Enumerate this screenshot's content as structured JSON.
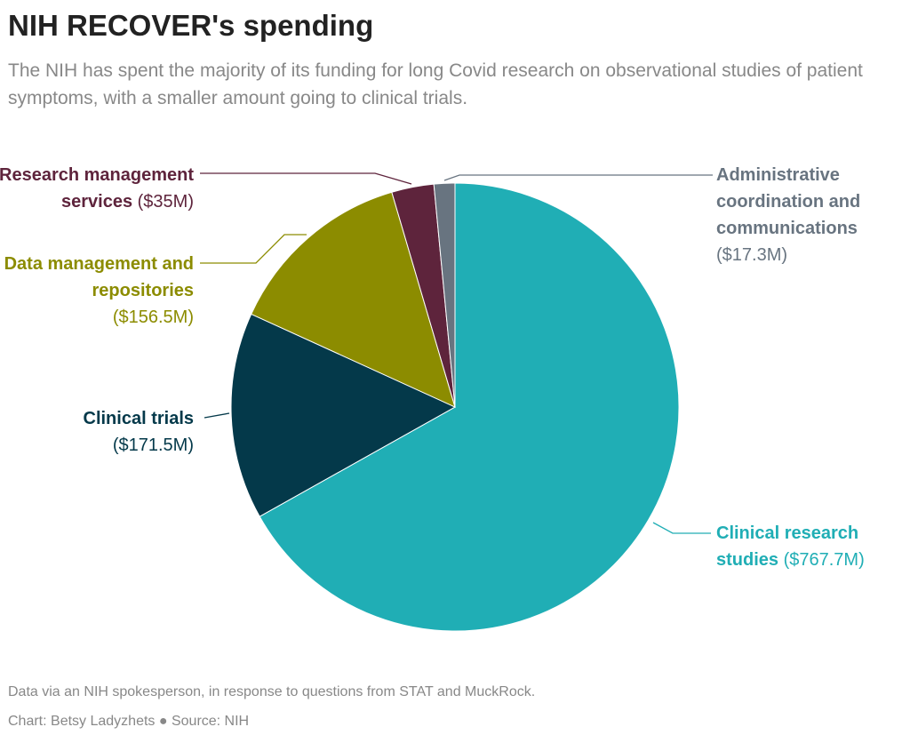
{
  "chart_data": {
    "type": "pie",
    "title": "NIH RECOVER's spending",
    "subtitle": "The NIH has spent the majority of its funding for long Covid research on observational studies of patient symptoms, with a smaller amount going to clinical trials.",
    "unit": "$M",
    "slices": [
      {
        "name": "Clinical research studies",
        "value": 767.7,
        "amount_label": "($767.7M)",
        "color": "#20aeb5"
      },
      {
        "name": "Clinical trials",
        "value": 171.5,
        "amount_label": "($171.5M)",
        "color": "#04394a"
      },
      {
        "name": "Data management and repositories",
        "value": 156.5,
        "amount_label": "($156.5M)",
        "color": "#8c8c00"
      },
      {
        "name": "Research management services",
        "value": 35,
        "amount_label": "($35M)",
        "color": "#5e243c"
      },
      {
        "name": "Administrative coordination and communications",
        "value": 17.3,
        "amount_label": "($17.3M)",
        "color": "#687480"
      }
    ],
    "start": "top",
    "direction": "clockwise"
  },
  "footer": {
    "note": "Data via an NIH spokesperson, in response to questions from STAT and MuckRock.",
    "credit": "Chart: Betsy Ladyzhets ● Source: NIH"
  }
}
